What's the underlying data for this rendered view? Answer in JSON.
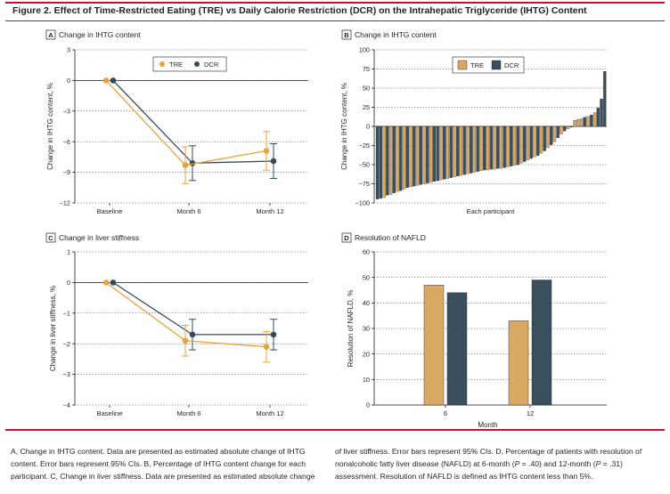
{
  "figure_title": "Figure 2. Effect of Time-Restricted Eating (TRE) vs Daily Calorie Restriction (DCR) on the Intrahepatic Triglyceride (IHTG) Content",
  "colors": {
    "TRE": "#e9a23b",
    "DCR": "#36495a",
    "TRE_bar": "#d9a863",
    "DCR_bar": "#3a4f5e",
    "rule": "#c8102e"
  },
  "chart_data": [
    {
      "panel": "A",
      "type": "line",
      "title": "Change in IHTG content",
      "ylabel": "Change in IHTG content, %",
      "xlabel": "",
      "categories": [
        "Baseline",
        "Month 6",
        "Month 12"
      ],
      "ylim": [
        -12,
        3
      ],
      "yticks": [
        "3",
        "0",
        "-3",
        "-6",
        "-9",
        "-12"
      ],
      "legend": "top-right",
      "series": [
        {
          "name": "TRE",
          "values": [
            0,
            -8.3,
            -6.9
          ],
          "ci_low": [
            0,
            -10.1,
            -8.8
          ],
          "ci_high": [
            0,
            -6.5,
            -5.0
          ]
        },
        {
          "name": "DCR",
          "values": [
            0,
            -8.1,
            -7.9
          ],
          "ci_low": [
            0,
            -9.8,
            -9.6
          ],
          "ci_high": [
            0,
            -6.4,
            -6.2
          ]
        }
      ]
    },
    {
      "panel": "B",
      "type": "bar",
      "title": "Change in IHTG content",
      "ylabel": "Change in IHTG content, %",
      "xlabel": "Each participant",
      "ylim": [
        -100,
        100
      ],
      "yticks": [
        "100",
        "75",
        "50",
        "25",
        "0",
        "-25",
        "-50",
        "-75",
        "-100"
      ],
      "legend": "top-left",
      "series_names": [
        "TRE",
        "DCR"
      ],
      "participants": [
        {
          "g": "D",
          "v": -95
        },
        {
          "g": "D",
          "v": -94
        },
        {
          "g": "T",
          "v": -93
        },
        {
          "g": "D",
          "v": -90
        },
        {
          "g": "T",
          "v": -89
        },
        {
          "g": "D",
          "v": -87
        },
        {
          "g": "T",
          "v": -85
        },
        {
          "g": "D",
          "v": -84
        },
        {
          "g": "T",
          "v": -82
        },
        {
          "g": "D",
          "v": -80
        },
        {
          "g": "T",
          "v": -79
        },
        {
          "g": "D",
          "v": -78
        },
        {
          "g": "T",
          "v": -77
        },
        {
          "g": "D",
          "v": -76
        },
        {
          "g": "T",
          "v": -75
        },
        {
          "g": "D",
          "v": -74
        },
        {
          "g": "T",
          "v": -73
        },
        {
          "g": "D",
          "v": -72
        },
        {
          "g": "D",
          "v": -71
        },
        {
          "g": "T",
          "v": -70
        },
        {
          "g": "D",
          "v": -69
        },
        {
          "g": "T",
          "v": -68
        },
        {
          "g": "D",
          "v": -67
        },
        {
          "g": "T",
          "v": -66
        },
        {
          "g": "D",
          "v": -65
        },
        {
          "g": "T",
          "v": -64
        },
        {
          "g": "D",
          "v": -63
        },
        {
          "g": "T",
          "v": -62
        },
        {
          "g": "D",
          "v": -61
        },
        {
          "g": "T",
          "v": -60
        },
        {
          "g": "D",
          "v": -59
        },
        {
          "g": "T",
          "v": -58
        },
        {
          "g": "D",
          "v": -57
        },
        {
          "g": "T",
          "v": -57
        },
        {
          "g": "D",
          "v": -56
        },
        {
          "g": "T",
          "v": -56
        },
        {
          "g": "D",
          "v": -55
        },
        {
          "g": "T",
          "v": -55
        },
        {
          "g": "D",
          "v": -54
        },
        {
          "g": "T",
          "v": -53
        },
        {
          "g": "D",
          "v": -52
        },
        {
          "g": "T",
          "v": -51
        },
        {
          "g": "D",
          "v": -50
        },
        {
          "g": "T",
          "v": -48
        },
        {
          "g": "D",
          "v": -46
        },
        {
          "g": "T",
          "v": -44
        },
        {
          "g": "D",
          "v": -42
        },
        {
          "g": "T",
          "v": -40
        },
        {
          "g": "D",
          "v": -38
        },
        {
          "g": "T",
          "v": -35
        },
        {
          "g": "D",
          "v": -32
        },
        {
          "g": "T",
          "v": -28
        },
        {
          "g": "D",
          "v": -24
        },
        {
          "g": "T",
          "v": -20
        },
        {
          "g": "D",
          "v": -15
        },
        {
          "g": "T",
          "v": -10
        },
        {
          "g": "D",
          "v": -6
        },
        {
          "g": "T",
          "v": -3
        },
        {
          "g": "D",
          "v": -1
        },
        {
          "g": "T",
          "v": 8
        },
        {
          "g": "T",
          "v": 9
        },
        {
          "g": "T",
          "v": 10
        },
        {
          "g": "D",
          "v": 12
        },
        {
          "g": "T",
          "v": 13
        },
        {
          "g": "D",
          "v": 15
        },
        {
          "g": "T",
          "v": 18
        },
        {
          "g": "D",
          "v": 24
        },
        {
          "g": "D",
          "v": 36
        },
        {
          "g": "D",
          "v": 72
        }
      ]
    },
    {
      "panel": "C",
      "type": "line",
      "title": "Change in liver stiffness",
      "ylabel": "Change in liver stiffness, %",
      "xlabel": "",
      "categories": [
        "Baseline",
        "Month 6",
        "Month 12"
      ],
      "ylim": [
        -4,
        1
      ],
      "yticks": [
        "1",
        "0",
        "-1",
        "-2",
        "-3",
        "-4"
      ],
      "series": [
        {
          "name": "TRE",
          "values": [
            0,
            -1.9,
            -2.1
          ],
          "ci_low": [
            0,
            -2.4,
            -2.6
          ],
          "ci_high": [
            0,
            -1.4,
            -1.6
          ]
        },
        {
          "name": "DCR",
          "values": [
            0,
            -1.7,
            -1.7
          ],
          "ci_low": [
            0,
            -2.2,
            -2.2
          ],
          "ci_high": [
            0,
            -1.2,
            -1.2
          ]
        }
      ]
    },
    {
      "panel": "D",
      "type": "bar",
      "title": "Resolution of NAFLD",
      "ylabel": "Resolution of NAFLD, %",
      "xlabel": "Month",
      "categories": [
        "6",
        "12"
      ],
      "ylim": [
        0,
        60
      ],
      "yticks": [
        "60",
        "50",
        "40",
        "30",
        "20",
        "10",
        "0"
      ],
      "series": [
        {
          "name": "TRE",
          "values": [
            47,
            33
          ]
        },
        {
          "name": "DCR",
          "values": [
            44,
            49
          ]
        }
      ]
    }
  ],
  "caption": {
    "left": [
      {
        "t": "A, Change in IHTG content. Data are presented as estimated absolute change of IHTG content. Error bars represent 95% CIs. B, Percentage of IHTG content change for each participant. C, Change in liver stiffness. Data are presented as estimated absolute change"
      }
    ],
    "right": [
      {
        "t": "of liver stiffness. Error bars represent 95% CIs. D, Percentage of patients with resolution of nonalcoholic fatty liver disease (NAFLD) at 6-month ("
      },
      {
        "t": "P",
        "i": true
      },
      {
        "t": " = .40) and 12-month ("
      },
      {
        "t": "P",
        "i": true
      },
      {
        "t": " = .31) assessment. Resolution of NAFLD is defined as IHTG content less than 5%."
      }
    ]
  }
}
